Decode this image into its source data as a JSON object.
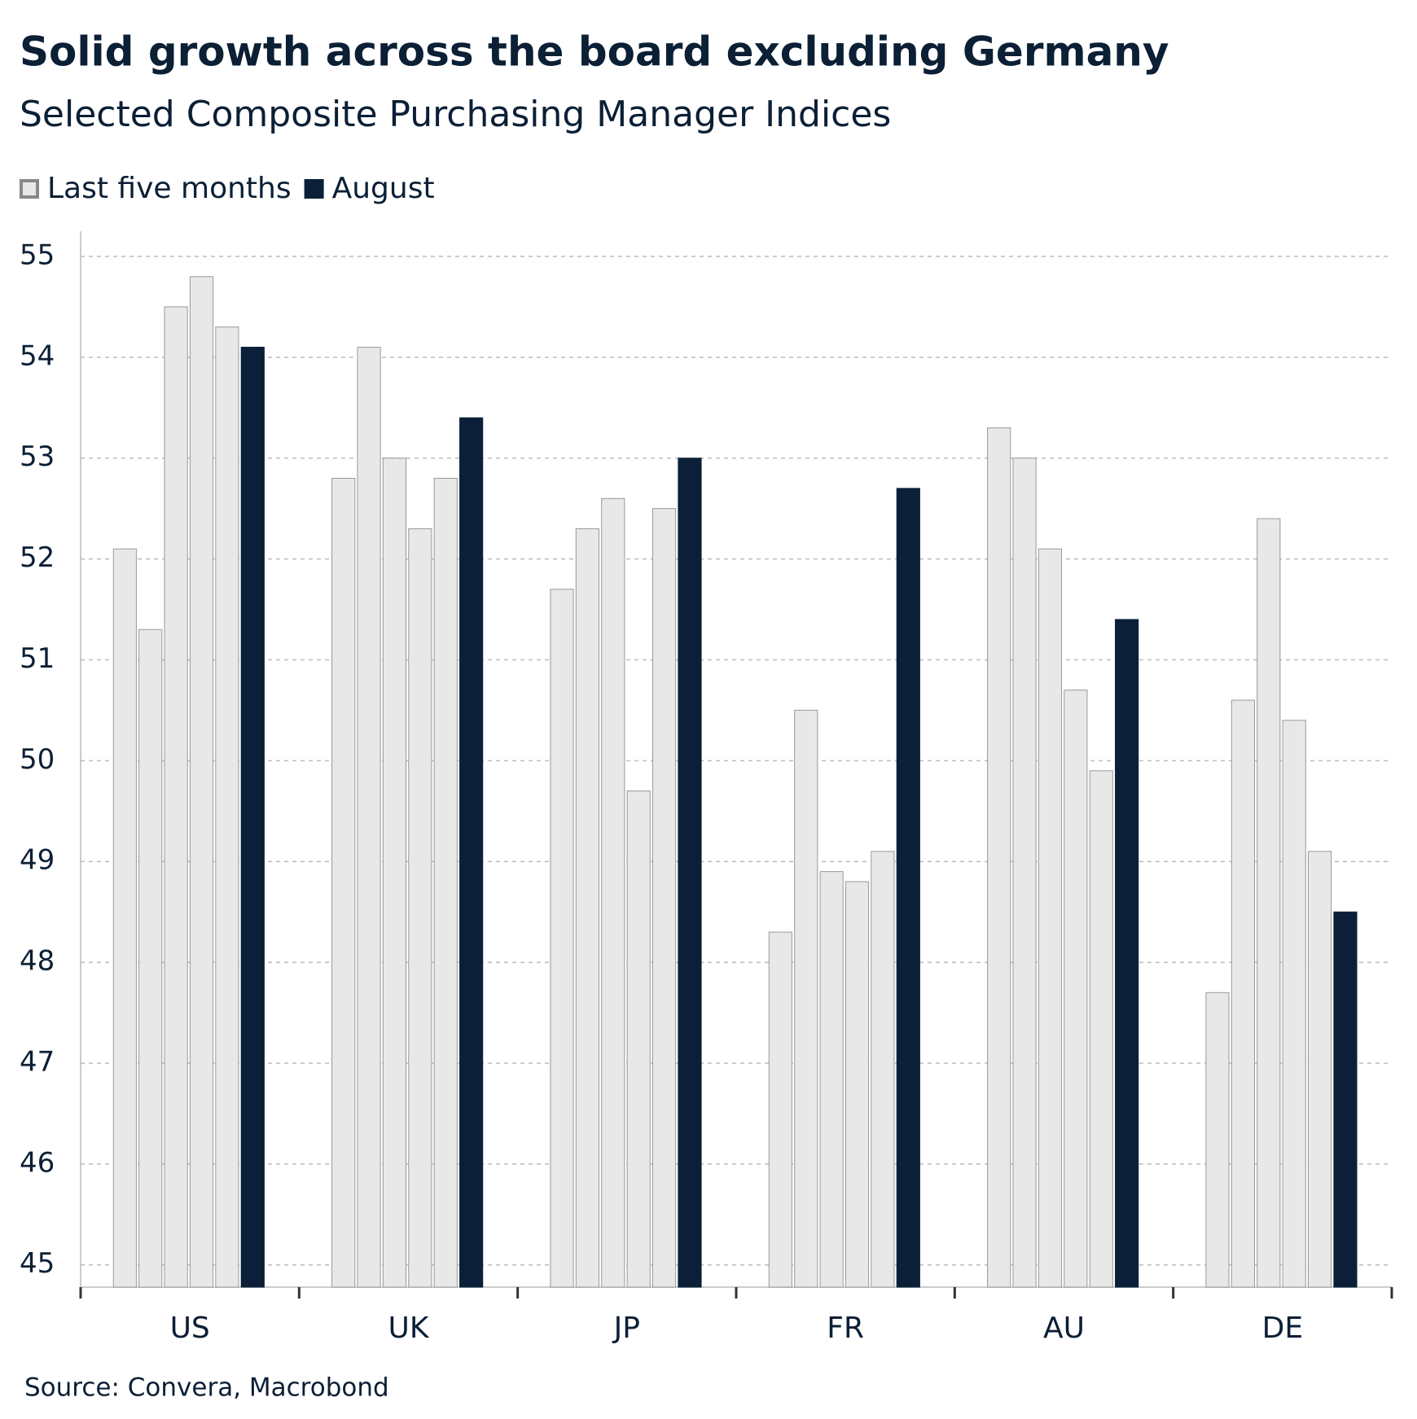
{
  "chart_data": {
    "type": "grouped-bar",
    "title": "Solid growth across the board excluding Germany",
    "subtitle": "Selected Composite Purchasing Manager Indices",
    "source": "Source: Convera, Macrobond",
    "categories": [
      "US",
      "UK",
      "JP",
      "FR",
      "AU",
      "DE"
    ],
    "series": [
      {
        "name": "Last five months",
        "color": "#e8e8e8",
        "values": [
          [
            52.1,
            51.3,
            54.5,
            54.8,
            54.3
          ],
          [
            52.8,
            54.1,
            53.0,
            52.3,
            52.8
          ],
          [
            51.7,
            52.3,
            52.6,
            49.7,
            52.5
          ],
          [
            48.3,
            50.5,
            48.9,
            48.8,
            49.1
          ],
          [
            53.3,
            53.0,
            52.1,
            50.7,
            49.9
          ],
          [
            47.7,
            50.6,
            52.4,
            50.4,
            49.1
          ]
        ]
      },
      {
        "name": "August",
        "color": "#0b2038",
        "values": [
          54.1,
          53.4,
          53.0,
          52.7,
          51.4,
          48.5
        ]
      }
    ],
    "ylim": [
      44.78,
      55.25
    ],
    "yticks": [
      45,
      46,
      47,
      48,
      49,
      50,
      51,
      52,
      53,
      54,
      55
    ],
    "grid": true,
    "legend": "top-left"
  }
}
